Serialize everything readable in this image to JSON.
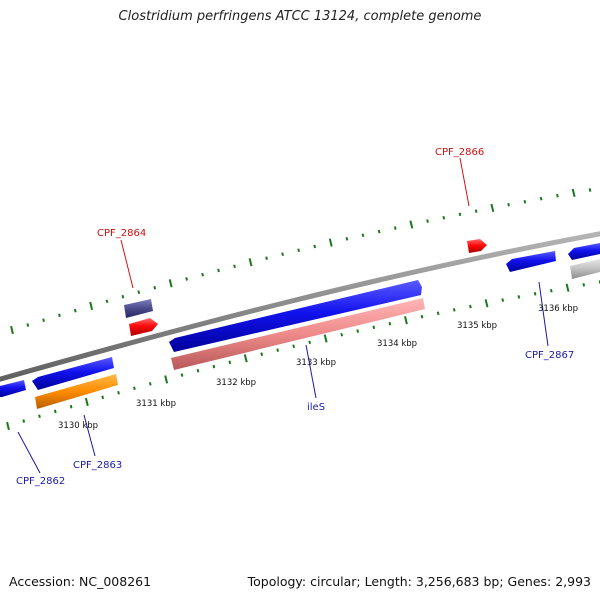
{
  "title": "Clostridium perfringens ATCC 13124, complete genome",
  "footer": {
    "accession": "Accession: NC_008261",
    "stats": "Topology: circular; Length: 3,256,683 bp; Genes: 2,993"
  },
  "colors": {
    "backbone": "#8a8a8a",
    "forward_gene": "#1616e6",
    "reverse_gene": "#ee1111",
    "rrna": "#ee9090",
    "orange_gene": "#ff8c00",
    "dark_gene": "#4a4a8c",
    "pseudo_gene": "#c0c0c0",
    "ticks": "#1a7a1a",
    "label_forward": "#1a1aa8",
    "label_reverse": "#cc1111"
  },
  "tick_labels": [
    "3130 kbp",
    "3131 kbp",
    "3132 kbp",
    "3133 kbp",
    "3134 kbp",
    "3135 kbp",
    "3136 kbp"
  ],
  "gene_labels": {
    "cpf_2862": "CPF_2862",
    "cpf_2863": "CPF_2863",
    "cpf_2864": "CPF_2864",
    "cpf_2866": "CPF_2866",
    "cpf_2867": "CPF_2867",
    "iles": "ileS"
  }
}
